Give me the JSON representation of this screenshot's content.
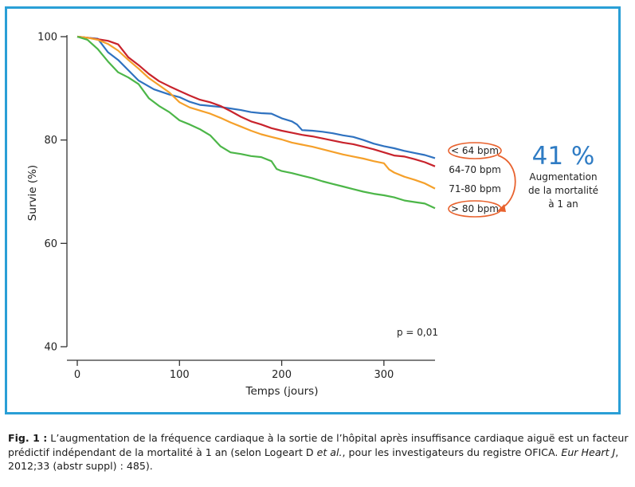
{
  "colors": {
    "frame": "#2a9fd6",
    "lt64": "#2f72c0",
    "b64_70": "#c8232c",
    "b71_80": "#f5a02a",
    "gt80": "#4cb648",
    "highlight": "#e8622e",
    "pct": "#2f7cc4"
  },
  "chart_data": {
    "type": "line",
    "xlabel": "Temps (jours)",
    "ylabel": "Survie (%)",
    "xlim": [
      0,
      350
    ],
    "ylim": [
      40,
      100
    ],
    "xticks": [
      "0",
      "100",
      "200",
      "300"
    ],
    "yticks": [
      "40",
      "60",
      "80",
      "100"
    ],
    "annotation_p": "p = 0,01",
    "series": [
      {
        "name": "< 64 bpm",
        "color_key": "lt64",
        "circled": true,
        "x": [
          0,
          10,
          20,
          30,
          40,
          50,
          60,
          75,
          90,
          100,
          110,
          120,
          130,
          140,
          150,
          160,
          170,
          180,
          190,
          200,
          210,
          215,
          220,
          230,
          240,
          250,
          260,
          270,
          280,
          290,
          300,
          310,
          320,
          330,
          340,
          350
        ],
        "y": [
          100,
          99.8,
          99.6,
          97,
          95.5,
          93.5,
          91.5,
          89.8,
          88.8,
          88.3,
          87.4,
          86.8,
          86.6,
          86.4,
          86.1,
          85.8,
          85.4,
          85.2,
          85.1,
          84.2,
          83.6,
          83.0,
          81.9,
          81.8,
          81.6,
          81.3,
          80.9,
          80.6,
          80.0,
          79.3,
          78.8,
          78.4,
          77.9,
          77.5,
          77.1,
          76.5
        ]
      },
      {
        "name": "64-70 bpm",
        "color_key": "b64_70",
        "circled": false,
        "x": [
          0,
          10,
          20,
          30,
          40,
          50,
          60,
          70,
          80,
          90,
          100,
          110,
          120,
          130,
          140,
          150,
          160,
          170,
          180,
          190,
          200,
          210,
          220,
          230,
          240,
          250,
          260,
          270,
          280,
          290,
          300,
          310,
          320,
          330,
          340,
          350
        ],
        "y": [
          100,
          99.8,
          99.5,
          99.2,
          98.5,
          96.0,
          94.5,
          92.8,
          91.4,
          90.4,
          89.5,
          88.6,
          87.8,
          87.3,
          86.6,
          85.6,
          84.5,
          83.6,
          83.0,
          82.3,
          81.8,
          81.4,
          81.0,
          80.7,
          80.3,
          79.9,
          79.5,
          79.2,
          78.7,
          78.2,
          77.6,
          77.0,
          76.8,
          76.3,
          75.7,
          74.9
        ]
      },
      {
        "name": "71-80 bpm",
        "color_key": "b71_80",
        "circled": false,
        "x": [
          0,
          10,
          20,
          30,
          40,
          50,
          60,
          70,
          80,
          90,
          100,
          110,
          120,
          130,
          140,
          150,
          160,
          170,
          180,
          190,
          200,
          210,
          220,
          230,
          240,
          250,
          260,
          270,
          280,
          290,
          300,
          305,
          310,
          320,
          330,
          340,
          350
        ],
        "y": [
          100,
          99.8,
          99.4,
          98.6,
          97.3,
          95.5,
          93.8,
          92.0,
          90.6,
          89.2,
          87.3,
          86.3,
          85.7,
          85.1,
          84.3,
          83.4,
          82.6,
          81.8,
          81.1,
          80.6,
          80.1,
          79.5,
          79.1,
          78.7,
          78.2,
          77.7,
          77.2,
          76.8,
          76.4,
          75.9,
          75.5,
          74.3,
          73.7,
          72.9,
          72.3,
          71.6,
          70.6
        ]
      },
      {
        "name": "> 80 bpm",
        "color_key": "gt80",
        "circled": true,
        "x": [
          0,
          10,
          20,
          30,
          40,
          50,
          60,
          70,
          80,
          90,
          100,
          110,
          120,
          130,
          140,
          150,
          160,
          170,
          180,
          190,
          195,
          200,
          210,
          220,
          230,
          240,
          250,
          260,
          270,
          280,
          290,
          300,
          310,
          320,
          330,
          340,
          350
        ],
        "y": [
          100,
          99.4,
          97.6,
          95.2,
          93.1,
          92.1,
          90.8,
          88.1,
          86.6,
          85.4,
          83.8,
          83.0,
          82.1,
          80.9,
          78.8,
          77.6,
          77.3,
          76.9,
          76.7,
          75.9,
          74.4,
          74.0,
          73.6,
          73.1,
          72.6,
          72.0,
          71.5,
          71.0,
          70.5,
          70.0,
          69.6,
          69.3,
          68.9,
          68.3,
          68.0,
          67.7,
          66.8
        ]
      }
    ]
  },
  "annotation": {
    "pct": "41 %",
    "line1": "Augmentation",
    "line2": "de la mortalité",
    "line3": "à 1 an"
  },
  "caption": {
    "fig": "Fig. 1 :",
    "text1": " L’augmentation de la fréquence cardiaque à la sortie de l’hôpital après insuffisance cardiaque aiguë est un facteur prédictif indépendant de la mortalité à 1 an (selon Logeart D ",
    "etal": "et al.",
    "text2": ", pour les investigateurs du registre OFICA. ",
    "journal": "Eur Heart J",
    "text3": ", 2012;33 (abstr suppl) : 485)."
  }
}
